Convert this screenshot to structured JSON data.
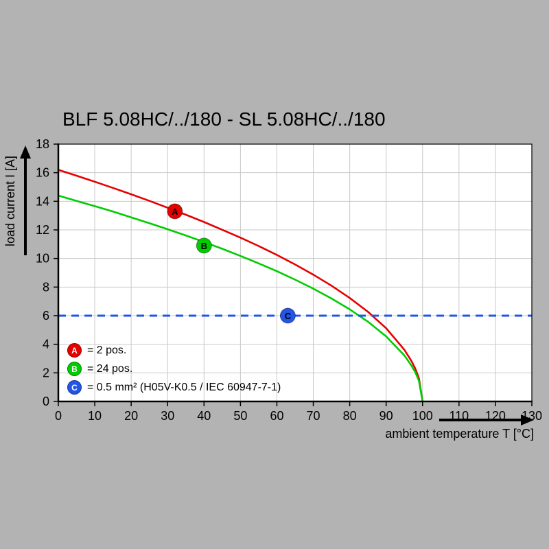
{
  "page": {
    "background": "#b3b3b3",
    "panel": "#ffffff",
    "grid_color": "#c8c8c8"
  },
  "title": "BLF 5.08HC/../180 - SL 5.08HC/../180",
  "chart_data": {
    "type": "line",
    "title": "BLF 5.08HC/../180 - SL 5.08HC/../180",
    "xlabel": "ambient temperature T [°C]",
    "ylabel": "load current I [A]",
    "xlim": [
      0,
      130
    ],
    "ylim": [
      0,
      18
    ],
    "xticks": [
      0,
      10,
      20,
      30,
      40,
      50,
      60,
      70,
      80,
      90,
      100,
      110,
      120,
      130
    ],
    "yticks": [
      0,
      2,
      4,
      6,
      8,
      10,
      12,
      14,
      16,
      18
    ],
    "grid": true,
    "legend_position": "lower-left",
    "series": [
      {
        "name": "A",
        "label": "= 2 pos.",
        "color": "#e60000",
        "style": "solid",
        "marker_at": [
          32,
          13.3
        ],
        "points": [
          [
            0,
            16.2
          ],
          [
            5,
            15.79
          ],
          [
            10,
            15.37
          ],
          [
            15,
            14.94
          ],
          [
            20,
            14.49
          ],
          [
            25,
            14.03
          ],
          [
            30,
            13.55
          ],
          [
            35,
            13.06
          ],
          [
            40,
            12.55
          ],
          [
            45,
            12.01
          ],
          [
            50,
            11.46
          ],
          [
            55,
            10.87
          ],
          [
            60,
            10.25
          ],
          [
            65,
            9.58
          ],
          [
            70,
            8.87
          ],
          [
            75,
            8.1
          ],
          [
            80,
            7.24
          ],
          [
            85,
            6.27
          ],
          [
            90,
            5.12
          ],
          [
            95,
            3.62
          ],
          [
            97,
            2.81
          ],
          [
            98,
            2.29
          ],
          [
            99,
            1.62
          ],
          [
            100,
            0
          ]
        ]
      },
      {
        "name": "B",
        "label": "= 24 pos.",
        "color": "#00cc00",
        "style": "solid",
        "marker_at": [
          40,
          10.9
        ],
        "points": [
          [
            0,
            14.4
          ],
          [
            5,
            14.03
          ],
          [
            10,
            13.66
          ],
          [
            15,
            13.28
          ],
          [
            20,
            12.88
          ],
          [
            25,
            12.47
          ],
          [
            30,
            12.05
          ],
          [
            35,
            11.61
          ],
          [
            40,
            11.15
          ],
          [
            45,
            10.68
          ],
          [
            50,
            10.18
          ],
          [
            55,
            9.66
          ],
          [
            60,
            9.11
          ],
          [
            65,
            8.52
          ],
          [
            70,
            7.89
          ],
          [
            75,
            7.2
          ],
          [
            80,
            6.44
          ],
          [
            85,
            5.58
          ],
          [
            90,
            4.55
          ],
          [
            95,
            3.22
          ],
          [
            97,
            2.49
          ],
          [
            98,
            2.04
          ],
          [
            99,
            1.44
          ],
          [
            100,
            0
          ]
        ]
      },
      {
        "name": "C",
        "label": "= 0.5 mm² (H05V-K0.5 / IEC 60947-7-1)",
        "color": "#2255e6",
        "style": "dashed",
        "marker_at": [
          63,
          6
        ],
        "points": [
          [
            0,
            6
          ],
          [
            130,
            6
          ]
        ]
      }
    ]
  }
}
